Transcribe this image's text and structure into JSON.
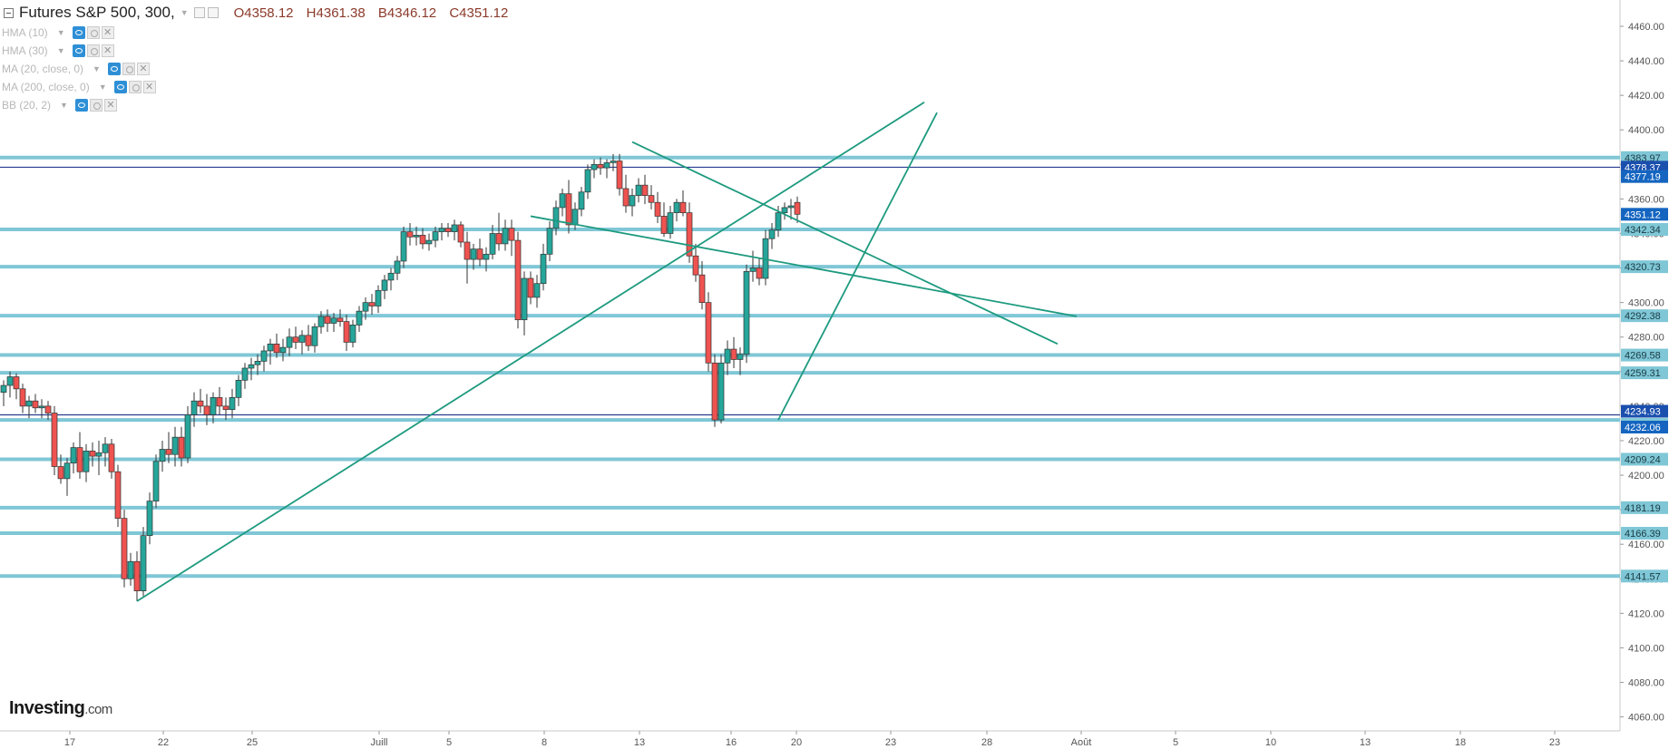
{
  "header": {
    "symbol": "Futures S&P 500, 300,",
    "open": "O4358.12",
    "high": "H4361.38",
    "low": "B4346.12",
    "close": "C4351.12"
  },
  "indicators": [
    {
      "label": "HMA (10)"
    },
    {
      "label": "HMA (30)"
    },
    {
      "label": "MA (20, close, 0)"
    },
    {
      "label": "MA (200, close, 0)"
    },
    {
      "label": "BB (20, 2)"
    }
  ],
  "logo": {
    "text": "Investing",
    "suffix": ".com"
  },
  "colors": {
    "up": "#26a69a",
    "down": "#ef5350",
    "hline": "#7fc7d6",
    "trend": "#1d9a7f",
    "axis_text": "#555555",
    "label_cyan": "#7fc7d6",
    "label_blue": "#1565c0"
  },
  "chart_data": {
    "type": "candlestick",
    "title": "Futures S&P 500, 300,",
    "ylim": [
      4055,
      4475
    ],
    "y_ticks": [
      "4060.00",
      "4080.00",
      "4100.00",
      "4120.00",
      "4140.00",
      "4160.00",
      "4180.00",
      "4200.00",
      "4220.00",
      "4240.00",
      "4260.00",
      "4280.00",
      "4300.00",
      "4320.00",
      "4340.00",
      "4360.00",
      "4380.00",
      "4400.00",
      "4420.00",
      "4440.00",
      "4460.00"
    ],
    "x_ticks": [
      "17",
      "22",
      "25",
      "Juill",
      "5",
      "8",
      "13",
      "16",
      "20",
      "23",
      "28",
      "Août",
      "5",
      "10",
      "13",
      "18",
      "23"
    ],
    "horizontal_levels": [
      {
        "value": 4383.97,
        "label": "4383.97",
        "style": "cyan"
      },
      {
        "value": 4378.37,
        "label": "4378.37",
        "style": "blue-thin"
      },
      {
        "value": 4377.19,
        "label": "4377.19",
        "style": "blue-label"
      },
      {
        "value": 4351.12,
        "label": "4351.12",
        "style": "blue-label"
      },
      {
        "value": 4342.34,
        "label": "4342.34",
        "style": "cyan"
      },
      {
        "value": 4320.73,
        "label": "4320.73",
        "style": "cyan"
      },
      {
        "value": 4292.38,
        "label": "4292.38",
        "style": "cyan"
      },
      {
        "value": 4269.58,
        "label": "4269.58",
        "style": "cyan"
      },
      {
        "value": 4259.31,
        "label": "4259.31",
        "style": "cyan"
      },
      {
        "value": 4234.93,
        "label": "4234.93",
        "style": "blue-thin"
      },
      {
        "value": 4232.02,
        "label": "4232.02",
        "style": "cyan"
      },
      {
        "value": 4232.06,
        "label": "4232.06",
        "style": "blue-label"
      },
      {
        "value": 4209.24,
        "label": "4209.24",
        "style": "cyan"
      },
      {
        "value": 4181.19,
        "label": "4181.19",
        "style": "cyan"
      },
      {
        "value": 4166.39,
        "label": "4166.39",
        "style": "cyan"
      },
      {
        "value": 4141.57,
        "label": "4141.57",
        "style": "cyan"
      }
    ],
    "candles": [
      [
        4248,
        4255,
        4240,
        4252
      ],
      [
        4252,
        4260,
        4245,
        4257
      ],
      [
        4257,
        4259,
        4244,
        4250
      ],
      [
        4250,
        4253,
        4236,
        4240
      ],
      [
        4240,
        4246,
        4233,
        4243
      ],
      [
        4243,
        4247,
        4236,
        4239
      ],
      [
        4239,
        4244,
        4233,
        4240
      ],
      [
        4240,
        4243,
        4232,
        4236
      ],
      [
        4236,
        4240,
        4200,
        4205
      ],
      [
        4205,
        4212,
        4195,
        4198
      ],
      [
        4198,
        4210,
        4188,
        4207
      ],
      [
        4207,
        4219,
        4201,
        4216
      ],
      [
        4216,
        4225,
        4198,
        4202
      ],
      [
        4202,
        4218,
        4196,
        4214
      ],
      [
        4214,
        4219,
        4205,
        4211
      ],
      [
        4211,
        4220,
        4200,
        4213
      ],
      [
        4213,
        4222,
        4205,
        4218
      ],
      [
        4218,
        4221,
        4198,
        4202
      ],
      [
        4202,
        4206,
        4170,
        4175
      ],
      [
        4175,
        4180,
        4135,
        4140
      ],
      [
        4140,
        4155,
        4136,
        4150
      ],
      [
        4150,
        4156,
        4127,
        4133
      ],
      [
        4133,
        4170,
        4130,
        4165
      ],
      [
        4165,
        4190,
        4160,
        4185
      ],
      [
        4185,
        4212,
        4181,
        4208
      ],
      [
        4208,
        4220,
        4202,
        4215
      ],
      [
        4215,
        4225,
        4207,
        4212
      ],
      [
        4212,
        4228,
        4205,
        4222
      ],
      [
        4222,
        4228,
        4205,
        4210
      ],
      [
        4210,
        4240,
        4207,
        4235
      ],
      [
        4235,
        4248,
        4228,
        4243
      ],
      [
        4243,
        4250,
        4236,
        4240
      ],
      [
        4240,
        4247,
        4229,
        4235
      ],
      [
        4235,
        4248,
        4230,
        4245
      ],
      [
        4245,
        4251,
        4235,
        4240
      ],
      [
        4240,
        4245,
        4232,
        4238
      ],
      [
        4238,
        4250,
        4233,
        4245
      ],
      [
        4245,
        4258,
        4240,
        4255
      ],
      [
        4255,
        4265,
        4250,
        4262
      ],
      [
        4262,
        4268,
        4255,
        4264
      ],
      [
        4264,
        4270,
        4258,
        4266
      ],
      [
        4266,
        4275,
        4260,
        4272
      ],
      [
        4272,
        4279,
        4264,
        4276
      ],
      [
        4276,
        4282,
        4268,
        4271
      ],
      [
        4271,
        4279,
        4266,
        4274
      ],
      [
        4274,
        4285,
        4269,
        4280
      ],
      [
        4280,
        4286,
        4273,
        4277
      ],
      [
        4277,
        4284,
        4270,
        4281
      ],
      [
        4281,
        4287,
        4272,
        4275
      ],
      [
        4275,
        4288,
        4271,
        4286
      ],
      [
        4286,
        4295,
        4282,
        4292
      ],
      [
        4292,
        4296,
        4283,
        4288
      ],
      [
        4288,
        4294,
        4283,
        4291
      ],
      [
        4291,
        4296,
        4286,
        4289
      ],
      [
        4289,
        4293,
        4272,
        4277
      ],
      [
        4277,
        4290,
        4274,
        4287
      ],
      [
        4287,
        4298,
        4283,
        4295
      ],
      [
        4295,
        4303,
        4290,
        4300
      ],
      [
        4300,
        4305,
        4293,
        4298
      ],
      [
        4298,
        4310,
        4294,
        4307
      ],
      [
        4307,
        4316,
        4302,
        4313
      ],
      [
        4313,
        4320,
        4307,
        4317
      ],
      [
        4317,
        4327,
        4313,
        4324
      ],
      [
        4324,
        4344,
        4320,
        4341
      ],
      [
        4341,
        4346,
        4333,
        4338
      ],
      [
        4338,
        4344,
        4333,
        4339
      ],
      [
        4339,
        4343,
        4331,
        4334
      ],
      [
        4334,
        4340,
        4330,
        4336
      ],
      [
        4336,
        4344,
        4332,
        4341
      ],
      [
        4341,
        4346,
        4336,
        4343
      ],
      [
        4343,
        4346,
        4338,
        4341
      ],
      [
        4341,
        4348,
        4336,
        4345
      ],
      [
        4345,
        4347,
        4332,
        4335
      ],
      [
        4335,
        4341,
        4311,
        4325
      ],
      [
        4325,
        4334,
        4319,
        4331
      ],
      [
        4331,
        4337,
        4321,
        4325
      ],
      [
        4325,
        4332,
        4318,
        4328
      ],
      [
        4328,
        4345,
        4325,
        4340
      ],
      [
        4340,
        4352,
        4330,
        4334
      ],
      [
        4334,
        4348,
        4330,
        4343
      ],
      [
        4343,
        4348,
        4327,
        4336
      ],
      [
        4336,
        4341,
        4285,
        4290
      ],
      [
        4290,
        4318,
        4281,
        4314
      ],
      [
        4314,
        4318,
        4299,
        4303
      ],
      [
        4303,
        4316,
        4297,
        4311
      ],
      [
        4311,
        4334,
        4307,
        4328
      ],
      [
        4328,
        4347,
        4324,
        4343
      ],
      [
        4343,
        4359,
        4339,
        4355
      ],
      [
        4355,
        4366,
        4350,
        4363
      ],
      [
        4363,
        4371,
        4340,
        4345
      ],
      [
        4345,
        4358,
        4342,
        4354
      ],
      [
        4354,
        4367,
        4350,
        4364
      ],
      [
        4364,
        4380,
        4360,
        4377
      ],
      [
        4377,
        4383,
        4372,
        4380
      ],
      [
        4380,
        4384,
        4374,
        4378
      ],
      [
        4378,
        4383,
        4372,
        4381
      ],
      [
        4381,
        4386,
        4376,
        4382
      ],
      [
        4382,
        4386,
        4362,
        4366
      ],
      [
        4366,
        4374,
        4352,
        4356
      ],
      [
        4356,
        4366,
        4350,
        4362
      ],
      [
        4362,
        4372,
        4358,
        4368
      ],
      [
        4368,
        4374,
        4357,
        4362
      ],
      [
        4362,
        4368,
        4354,
        4358
      ],
      [
        4358,
        4364,
        4346,
        4350
      ],
      [
        4350,
        4358,
        4338,
        4340
      ],
      [
        4340,
        4356,
        4337,
        4352
      ],
      [
        4352,
        4360,
        4347,
        4358
      ],
      [
        4358,
        4365,
        4350,
        4352
      ],
      [
        4352,
        4358,
        4323,
        4327
      ],
      [
        4327,
        4334,
        4312,
        4316
      ],
      [
        4316,
        4324,
        4296,
        4300
      ],
      [
        4300,
        4306,
        4260,
        4265
      ],
      [
        4265,
        4270,
        4228,
        4232
      ],
      [
        4232,
        4270,
        4230,
        4265
      ],
      [
        4265,
        4278,
        4258,
        4273
      ],
      [
        4273,
        4280,
        4262,
        4267
      ],
      [
        4267,
        4274,
        4258,
        4270
      ],
      [
        4270,
        4322,
        4265,
        4318
      ],
      [
        4318,
        4330,
        4312,
        4320
      ],
      [
        4320,
        4326,
        4310,
        4314
      ],
      [
        4314,
        4342,
        4310,
        4337
      ],
      [
        4337,
        4346,
        4331,
        4342
      ],
      [
        4342,
        4356,
        4338,
        4352
      ],
      [
        4352,
        4358,
        4348,
        4355
      ],
      [
        4355,
        4360,
        4348,
        4356
      ],
      [
        4358,
        4361.38,
        4346.12,
        4351.12
      ]
    ],
    "trendlines": [
      {
        "from": [
          21,
          4127
        ],
        "to": [
          145,
          4416
        ]
      },
      {
        "from": [
          122,
          4232
        ],
        "to": [
          147,
          4410
        ]
      },
      {
        "from": [
          83,
          4350
        ],
        "to": [
          169,
          4292
        ]
      },
      {
        "from": [
          99,
          4393
        ],
        "to": [
          166,
          4276
        ]
      }
    ]
  }
}
